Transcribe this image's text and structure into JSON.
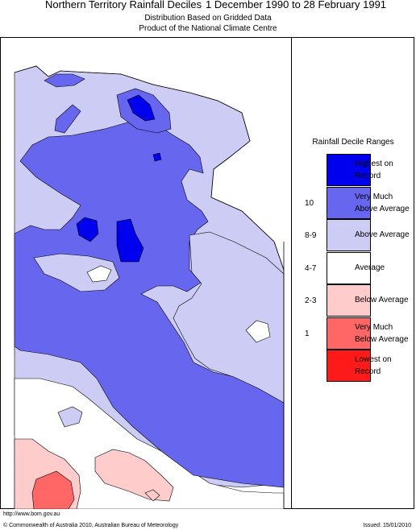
{
  "header": {
    "title": "Northern Territory Rainfall Deciles",
    "period": "1 December 1990 to 28 February 1991",
    "subtitle1": "Distribution Based on Gridded Data",
    "subtitle2": "Product of the National Climate Centre"
  },
  "legend": {
    "title": "Rainfall Decile Ranges",
    "entries": [
      {
        "name": "highest",
        "line1": "Highest on",
        "line2": "Record",
        "range": "",
        "color": "#0000ee"
      },
      {
        "name": "very-much-above",
        "line1": "Very Much",
        "line2": "Above Average",
        "range": "10",
        "color": "#6666ee"
      },
      {
        "name": "above",
        "line1": "Above Average",
        "line2": "",
        "range": "8-9",
        "color": "#ccccf5"
      },
      {
        "name": "average",
        "line1": "Average",
        "line2": "",
        "range": "4-7",
        "color": "#ffffff"
      },
      {
        "name": "below",
        "line1": "Below Average",
        "line2": "",
        "range": "2-3",
        "color": "#ffcccc"
      },
      {
        "name": "very-much-below",
        "line1": "Very Much",
        "line2": "Below Average",
        "range": "1",
        "color": "#ff6666"
      },
      {
        "name": "lowest",
        "line1": "Lowest on",
        "line2": "Record",
        "range": "",
        "color": "#ff1a1a"
      }
    ]
  },
  "footer": {
    "url": "http://www.bom.gov.au",
    "copyright": "© Commonwealth of Australia 2010, Australian Bureau of Meteorology",
    "issued": "Issued: 15/01/2010"
  }
}
